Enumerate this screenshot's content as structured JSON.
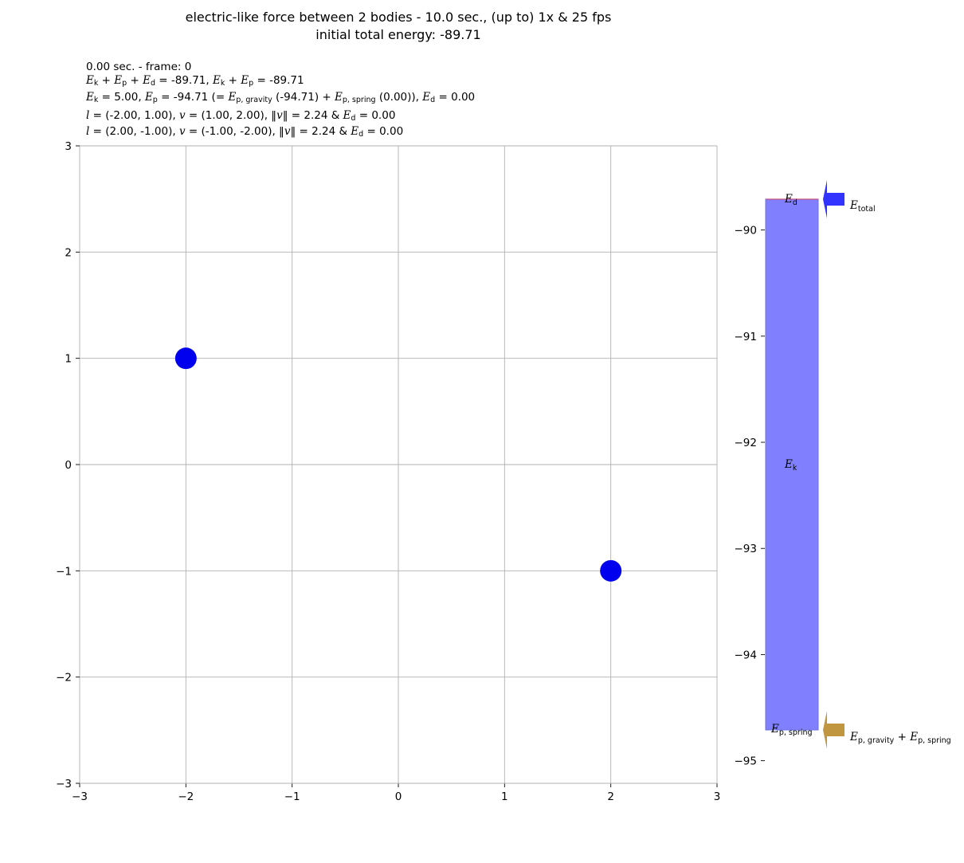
{
  "title": {
    "line1": "electric-like force between 2 bodies - 10.0 sec., (up to) 1x & 25 fps",
    "line2": "initial total energy: -89.71"
  },
  "info": {
    "time": "0.00 sec. - frame: 0",
    "l1": {
      "sum_all": "-89.71",
      "sum_kp": "-89.71"
    },
    "l2": {
      "ek": "5.00",
      "ep": "-94.71",
      "ep_gravity": "(-94.71)",
      "ep_spring": "(0.00)",
      "ed": "0.00"
    },
    "body1": {
      "pos": "(-2.00, 1.00)",
      "vel": "(1.00, 2.00)",
      "speed": "2.24",
      "ed": "0.00"
    },
    "body2": {
      "pos": "(2.00, -1.00)",
      "vel": "(-1.00, -2.00)",
      "speed": "2.24",
      "ed": "0.00"
    }
  },
  "chart_data": [
    {
      "type": "scatter",
      "xlim": [
        -3,
        3
      ],
      "ylim": [
        -3,
        3
      ],
      "x_ticks": [
        "−3",
        "−2",
        "−1",
        "0",
        "1",
        "2",
        "3"
      ],
      "y_ticks": [
        "−3",
        "−2",
        "−1",
        "0",
        "1",
        "2",
        "3"
      ],
      "grid": true,
      "points": [
        {
          "x": -2,
          "y": 1
        },
        {
          "x": 2,
          "y": -1
        }
      ],
      "point_color": "#0000ee"
    },
    {
      "type": "bar",
      "ylim": [
        -95.25,
        -89.45
      ],
      "y_ticks": [
        "−90",
        "−91",
        "−92",
        "−93",
        "−94",
        "−95"
      ],
      "y_tick_values": [
        -90,
        -91,
        -92,
        -93,
        -94,
        -95
      ],
      "bar_bottom": -94.71,
      "bar_top": -89.71,
      "bar_color": "#8080ff",
      "labels": {
        "ed": "d",
        "ek": "k",
        "ep": "p, spring"
      },
      "arrows": [
        {
          "value": -89.71,
          "color": "#3333ff",
          "label_sub": "total"
        },
        {
          "value": -94.71,
          "color": "#c09640",
          "label_sub1": "p, gravity",
          "label_sub2": "p, spring"
        }
      ]
    }
  ]
}
